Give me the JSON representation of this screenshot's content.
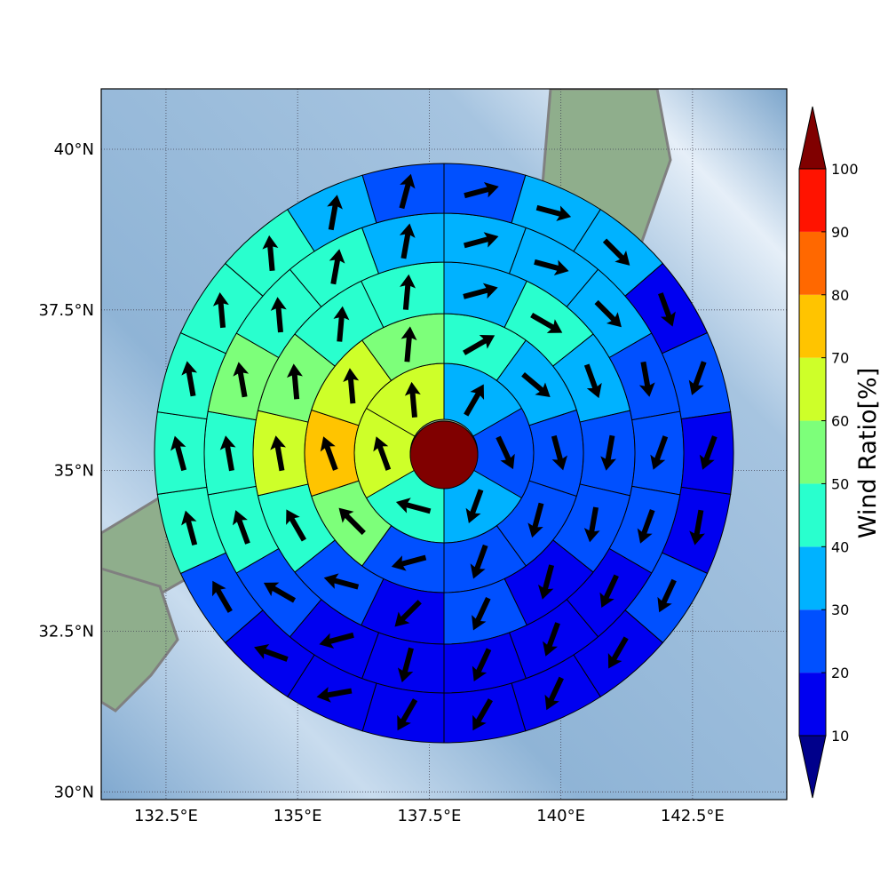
{
  "chart_data": {
    "type": "polar_wind",
    "xlim": [
      131.27,
      144.29
    ],
    "ylim": [
      29.88,
      40.94
    ],
    "xticks": [
      {
        "value": 132.5,
        "label": "132.5°E"
      },
      {
        "value": 135,
        "label": "135°E"
      },
      {
        "value": 137.5,
        "label": "137.5°E"
      },
      {
        "value": 140,
        "label": "140°E"
      },
      {
        "value": 142.5,
        "label": "142.5°E"
      }
    ],
    "yticks": [
      {
        "value": 30,
        "label": "30°N"
      },
      {
        "value": 32.5,
        "label": "32.5°N"
      },
      {
        "value": 35,
        "label": "35°N"
      },
      {
        "value": 37.5,
        "label": "37.5°N"
      },
      {
        "value": 40,
        "label": "40°N"
      }
    ],
    "grid": true,
    "rings": [
      {
        "values": [
          35,
          25,
          35,
          45,
          65,
          65
        ],
        "directions": [
          30,
          155,
          200,
          285,
          340,
          355
        ]
      },
      {
        "values": [
          45,
          35,
          25,
          25,
          25,
          25,
          55,
          75,
          65,
          55
        ],
        "directions": [
          60,
          130,
          165,
          195,
          200,
          255,
          315,
          340,
          355,
          5
        ]
      },
      {
        "values": [
          35,
          45,
          35,
          25,
          25,
          15,
          25,
          15,
          25,
          45,
          65,
          55,
          45,
          45
        ],
        "directions": [
          75,
          120,
          160,
          190,
          190,
          195,
          205,
          225,
          285,
          330,
          350,
          355,
          5,
          5
        ]
      },
      {
        "values": [
          35,
          35,
          35,
          25,
          25,
          25,
          15,
          15,
          15,
          15,
          15,
          25,
          45,
          45,
          55,
          45,
          45,
          35
        ],
        "directions": [
          75,
          105,
          135,
          170,
          200,
          200,
          205,
          200,
          205,
          195,
          255,
          300,
          340,
          350,
          350,
          355,
          10,
          10
        ]
      },
      {
        "values": [
          25,
          35,
          35,
          15,
          25,
          15,
          15,
          25,
          15,
          15,
          15,
          15,
          15,
          15,
          25,
          45,
          45,
          45,
          45,
          45,
          35,
          25
        ],
        "directions": [
          75,
          105,
          135,
          160,
          200,
          200,
          190,
          205,
          210,
          205,
          210,
          210,
          260,
          290,
          330,
          345,
          345,
          350,
          355,
          355,
          10,
          15
        ]
      }
    ],
    "colorbar": {
      "label": "Wind Ratio[%]",
      "levels": [
        10,
        20,
        30,
        40,
        50,
        60,
        70,
        80,
        90,
        100
      ],
      "colors": [
        "#0000f0",
        "#0050ff",
        "#00b2ff",
        "#29ffce",
        "#7dff7a",
        "#ceff29",
        "#ffc400",
        "#ff6800",
        "#ff1300"
      ],
      "under": "#00008b",
      "over": "#800000"
    }
  }
}
